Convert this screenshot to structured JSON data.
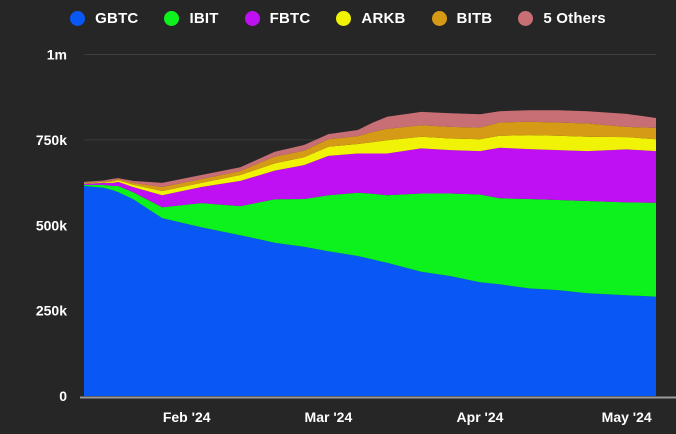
{
  "colors": {
    "background": "#262626",
    "grid": "#3d3d3d",
    "axis_line": "#9a9a9a",
    "text": "#ffffff"
  },
  "chart_data": {
    "type": "area",
    "stacked": true,
    "title": "",
    "legend_position": "top",
    "ylim": [
      0,
      1000000
    ],
    "y_ticks": [
      {
        "value": 0,
        "label": "0"
      },
      {
        "value": 250000,
        "label": "250k"
      },
      {
        "value": 500000,
        "label": "500k"
      },
      {
        "value": 750000,
        "label": "750k"
      },
      {
        "value": 1000000,
        "label": "1m"
      }
    ],
    "x_unit": "day_index",
    "x_domain": [
      0,
      117
    ],
    "x_ticks": [
      {
        "day": 21,
        "label": "Feb '24"
      },
      {
        "day": 50,
        "label": "Mar '24"
      },
      {
        "day": 81,
        "label": "Apr '24"
      },
      {
        "day": 111,
        "label": "May '24"
      }
    ],
    "days": [
      0,
      4,
      6,
      7,
      10,
      16,
      24,
      32,
      39,
      45,
      50,
      56,
      59,
      62,
      69,
      75,
      81,
      85,
      91,
      97,
      103,
      111,
      117
    ],
    "series": [
      {
        "name": "GBTC",
        "color": "#0957F5",
        "values_btc": [
          615000,
          610000,
          602000,
          597000,
          577000,
          521000,
          494000,
          471000,
          449000,
          437000,
          424000,
          410000,
          400000,
          390000,
          364000,
          351000,
          333000,
          327000,
          315000,
          310000,
          301000,
          295000,
          291000
        ]
      },
      {
        "name": "IBIT",
        "color": "#0DF21C",
        "values_btc": [
          3000,
          8000,
          13000,
          18000,
          20000,
          32000,
          71000,
          85000,
          127000,
          140000,
          164000,
          185000,
          192000,
          198000,
          229000,
          242000,
          257000,
          252000,
          262000,
          264000,
          270000,
          272000,
          275000
        ]
      },
      {
        "name": "FBTC",
        "color": "#BE10F2",
        "values_btc": [
          3000,
          6000,
          9000,
          12000,
          15000,
          35000,
          47000,
          74000,
          84000,
          99000,
          115000,
          115000,
          118000,
          122000,
          132000,
          127000,
          127000,
          148000,
          146000,
          146000,
          146000,
          155000,
          151000
        ]
      },
      {
        "name": "ARKB",
        "color": "#F1F307",
        "values_btc": [
          1000,
          2000,
          4000,
          5000,
          7000,
          12000,
          12000,
          17000,
          21000,
          23000,
          27000,
          28000,
          33000,
          39000,
          34000,
          34000,
          35000,
          35000,
          41000,
          42000,
          42000,
          36000,
          35000
        ]
      },
      {
        "name": "BITB",
        "color": "#D59B16",
        "values_btc": [
          2000,
          2000,
          3000,
          3000,
          5000,
          12000,
          11000,
          12000,
          20000,
          19000,
          22000,
          23000,
          30000,
          33000,
          34000,
          34000,
          34000,
          39000,
          39000,
          39000,
          39000,
          30000,
          33000
        ]
      },
      {
        "name": "5 Others",
        "color": "#C76F75",
        "values_btc": [
          3000,
          3000,
          5000,
          3000,
          6000,
          12000,
          12000,
          11000,
          14000,
          17000,
          15000,
          18000,
          27000,
          36000,
          39000,
          40000,
          39000,
          33000,
          34000,
          36000,
          36000,
          38000,
          29000
        ]
      }
    ]
  }
}
